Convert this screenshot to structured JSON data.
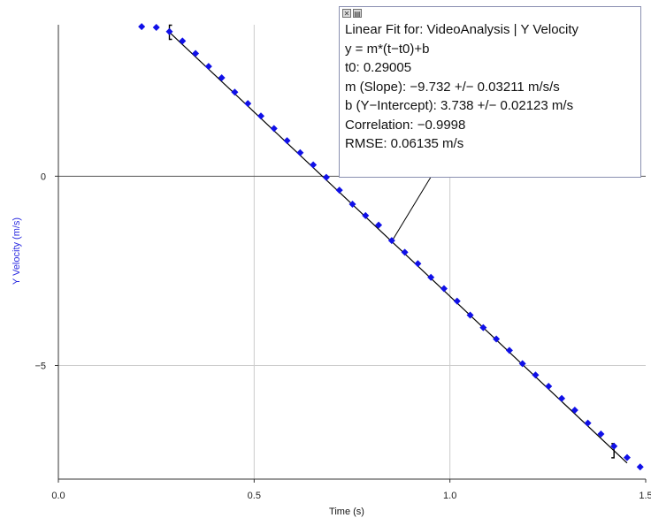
{
  "chart_data": {
    "type": "scatter",
    "xlabel": "Time (s)",
    "ylabel": "Y Velocity (m/s)",
    "xlim": [
      0.0,
      1.5
    ],
    "ylim": [
      -8.0,
      4.0
    ],
    "x_ticks": [
      0.0,
      0.5,
      1.0,
      1.5
    ],
    "x_tick_labels": [
      "0.0",
      "0.5",
      "1.0",
      "1.5"
    ],
    "y_ticks": [
      0,
      -5
    ],
    "y_tick_labels": [
      "0",
      "−5"
    ],
    "grid": true,
    "colors": {
      "points": "#1010e8",
      "fit_line": "#000000",
      "ylabel": "#2a2ae0",
      "grid": "#cccccc"
    },
    "series": [
      {
        "x": [
          0.2127,
          0.2501,
          0.2835,
          0.3169,
          0.3503,
          0.3837,
          0.4171,
          0.4505,
          0.4839,
          0.5173,
          0.5507,
          0.5841,
          0.6175,
          0.6509,
          0.6843,
          0.7177,
          0.7511,
          0.7845,
          0.8179,
          0.8513,
          0.8847,
          0.9181,
          0.9515,
          0.9849,
          1.0183,
          1.0517,
          1.0851,
          1.1185,
          1.1519,
          1.1853,
          1.2187,
          1.2521,
          1.2855,
          1.3189,
          1.3523,
          1.3857,
          1.4191,
          1.4525,
          1.4859
        ],
        "values": [
          3.95,
          3.93,
          3.82,
          3.57,
          3.24,
          2.9,
          2.6,
          2.22,
          1.92,
          1.59,
          1.26,
          0.94,
          0.62,
          0.3,
          -0.03,
          -0.37,
          -0.74,
          -1.04,
          -1.29,
          -1.7,
          -2.01,
          -2.31,
          -2.67,
          -2.97,
          -3.3,
          -3.67,
          -4.0,
          -4.3,
          -4.6,
          -4.95,
          -5.25,
          -5.55,
          -5.87,
          -6.18,
          -6.52,
          -6.81,
          -7.13,
          -7.43,
          -7.68
        ]
      }
    ],
    "fit": {
      "slope": -9.732,
      "t0": 0.29005,
      "intercept": 3.738,
      "x_range": [
        0.2835,
        1.4525
      ]
    },
    "bracket_left_x": 0.2835,
    "bracket_right_x": 1.4191,
    "leader_anchor_x": 0.8513
  },
  "fit_box": {
    "title": "Linear Fit for: VideoAnalysis | Y Velocity",
    "equation": "y = m*(t−t0)+b",
    "t0": "t0: 0.29005",
    "slope": "m (Slope): −9.732 +/− 0.03211 m/s/s",
    "intercept": "b (Y−Intercept): 3.738 +/− 0.02123 m/s",
    "correlation": "Correlation: −0.9998",
    "rmse": "RMSE: 0.06135 m/s",
    "close_glyph": "✕",
    "menu_glyph": "▤"
  }
}
